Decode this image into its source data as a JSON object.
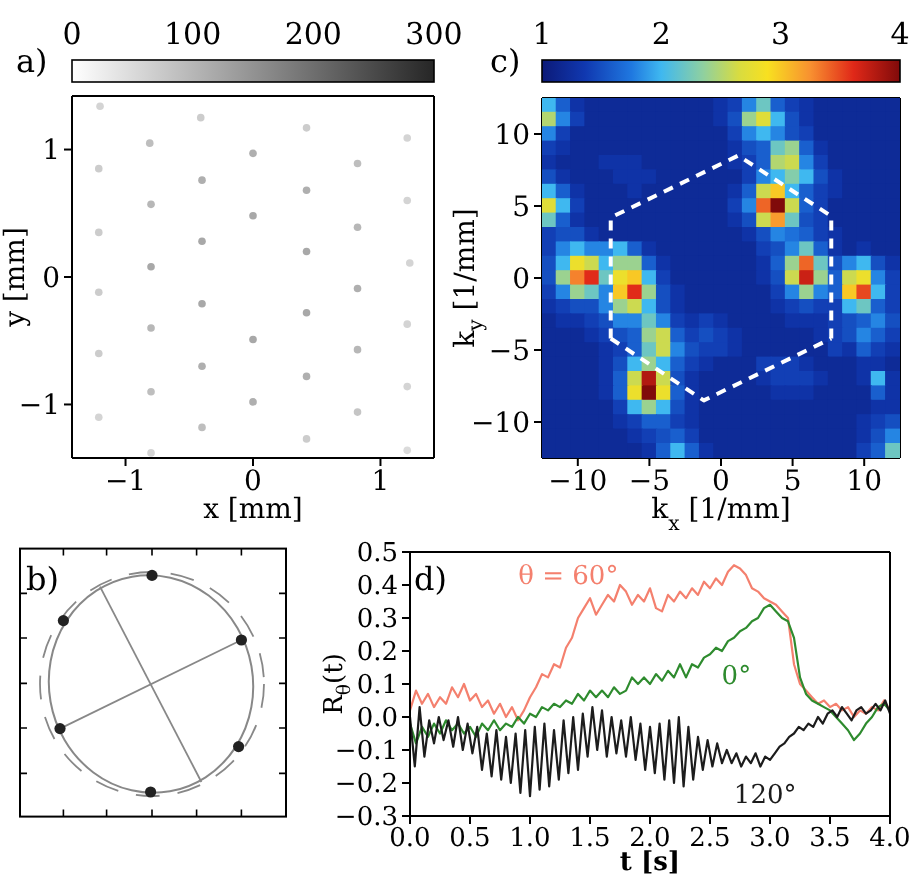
{
  "chart_data": [
    {
      "type": "scatter",
      "title": "a)",
      "xlabel": "x [mm]",
      "ylabel": "y [mm]",
      "xlim": [
        -1.42,
        1.42
      ],
      "ylim": [
        -1.42,
        1.42
      ],
      "xticks": [
        {
          "value": -1,
          "label": "−1"
        },
        0,
        1
      ],
      "yticks": [
        {
          "value": -1,
          "label": "−1"
        },
        0,
        1
      ],
      "clim": [
        0,
        300
      ],
      "cticks": [
        0,
        100,
        200,
        300
      ],
      "marker": "circle",
      "x": [
        -1.2,
        -0.41,
        0.42,
        1.21,
        -0.81,
        0,
        0.82,
        -1.21,
        -0.4,
        0.42,
        1.21,
        -0.8,
        0,
        0.82,
        -1.21,
        -0.4,
        0.42,
        1.23,
        -0.8,
        -1.21,
        -0.4,
        0.82,
        0.42,
        -0.8,
        0,
        1.21,
        -1.21,
        -0.4,
        0.82,
        0.42,
        -0.8,
        0,
        1.21,
        -1.21,
        -0.4,
        0.82,
        0.42,
        -0.8,
        1.21
      ],
      "values": [
        1.34,
        1.25,
        1.17,
        1.09,
        1.05,
        0.97,
        0.89,
        0.85,
        0.76,
        0.68,
        0.6,
        0.57,
        0.48,
        0.39,
        0.35,
        0.28,
        0.2,
        0.11,
        0.08,
        -0.12,
        -0.21,
        -0.09,
        -0.28,
        -0.4,
        -0.49,
        -0.37,
        -0.6,
        -0.7,
        -0.57,
        -0.78,
        -0.9,
        -0.98,
        -0.86,
        -1.1,
        -1.18,
        -1.06,
        -1.27,
        -1.38,
        -1.36
      ],
      "cvalues": [
        60,
        70,
        70,
        60,
        90,
        110,
        90,
        70,
        110,
        110,
        60,
        100,
        120,
        100,
        70,
        120,
        120,
        60,
        120,
        70,
        120,
        110,
        120,
        100,
        120,
        60,
        70,
        110,
        100,
        110,
        90,
        110,
        60,
        60,
        90,
        80,
        70,
        60,
        50
      ]
    },
    {
      "type": "heatmap",
      "title": "c)",
      "xlabel": "k$_{x}$ [1/mm]",
      "ylabel": "k$_{y}$ [1/mm]",
      "xlim": [
        -12.5,
        12.5
      ],
      "ylim": [
        -12.5,
        12.5
      ],
      "xticks": [
        {
          "value": -10,
          "label": "−10"
        },
        {
          "value": -5,
          "label": "−5"
        },
        0,
        5,
        10
      ],
      "yticks": [
        {
          "value": -10,
          "label": "−10"
        },
        {
          "value": -5,
          "label": "−5"
        },
        0,
        5,
        10
      ],
      "clim": [
        1,
        4
      ],
      "cticks": [
        1,
        2,
        3,
        4
      ],
      "x": [
        -12,
        -11,
        -10,
        -9,
        -8,
        -7,
        -6,
        -5,
        -4,
        -3,
        -2,
        -1,
        0,
        1,
        2,
        3,
        4,
        5,
        6,
        7,
        8,
        9,
        10,
        11,
        12
      ],
      "y": [
        12,
        11,
        10,
        9,
        8,
        7,
        6,
        5,
        4,
        3,
        2,
        1,
        0,
        -1,
        -2,
        -3,
        -4,
        -5,
        -6,
        -7,
        -8,
        -9,
        -10,
        -11,
        -12
      ],
      "cells": [
        [
          2.0,
          1.6,
          1.3,
          1.2,
          1.2,
          1.2,
          1.2,
          1.2,
          1.2,
          1.2,
          1.2,
          1.2,
          1.3,
          1.4,
          1.8,
          2.2,
          1.6,
          1.4,
          1.3,
          1.2,
          1.2,
          1.2,
          1.2,
          1.2,
          1.2
        ],
        [
          2.5,
          1.8,
          1.4,
          1.2,
          1.2,
          1.2,
          1.2,
          1.2,
          1.2,
          1.2,
          1.2,
          1.2,
          1.3,
          1.5,
          2.4,
          2.7,
          2.0,
          1.5,
          1.3,
          1.2,
          1.2,
          1.2,
          1.2,
          1.2,
          1.2
        ],
        [
          1.8,
          1.4,
          1.2,
          1.2,
          1.2,
          1.2,
          1.2,
          1.2,
          1.2,
          1.2,
          1.2,
          1.2,
          1.2,
          1.4,
          1.8,
          2.0,
          1.8,
          1.5,
          1.4,
          1.2,
          1.2,
          1.2,
          1.2,
          1.2,
          1.2
        ],
        [
          1.4,
          1.3,
          1.2,
          1.2,
          1.2,
          1.2,
          1.2,
          1.2,
          1.2,
          1.2,
          1.2,
          1.2,
          1.2,
          1.3,
          1.5,
          1.6,
          2.2,
          2.4,
          1.6,
          1.3,
          1.2,
          1.2,
          1.2,
          1.2,
          1.2
        ],
        [
          1.3,
          1.2,
          1.2,
          1.2,
          1.3,
          1.3,
          1.3,
          1.2,
          1.2,
          1.2,
          1.2,
          1.2,
          1.2,
          1.3,
          1.4,
          1.6,
          2.5,
          2.6,
          1.8,
          1.4,
          1.2,
          1.2,
          1.2,
          1.2,
          1.2
        ],
        [
          1.5,
          1.3,
          1.2,
          1.2,
          1.2,
          1.3,
          1.3,
          1.3,
          1.2,
          1.2,
          1.2,
          1.2,
          1.2,
          1.2,
          1.4,
          1.8,
          2.0,
          2.3,
          2.0,
          1.5,
          1.3,
          1.2,
          1.2,
          1.2,
          1.2
        ],
        [
          2.0,
          1.6,
          1.3,
          1.2,
          1.2,
          1.2,
          1.3,
          1.2,
          1.2,
          1.2,
          1.2,
          1.2,
          1.2,
          1.3,
          1.6,
          2.6,
          3.0,
          2.0,
          1.6,
          1.4,
          1.3,
          1.2,
          1.2,
          1.2,
          1.2
        ],
        [
          2.7,
          2.0,
          1.4,
          1.2,
          1.2,
          1.2,
          1.2,
          1.2,
          1.2,
          1.2,
          1.2,
          1.2,
          1.2,
          1.4,
          1.8,
          3.4,
          4.0,
          2.6,
          1.6,
          1.4,
          1.2,
          1.2,
          1.2,
          1.2,
          1.2
        ],
        [
          2.2,
          1.6,
          1.3,
          1.2,
          1.2,
          1.2,
          1.2,
          1.2,
          1.2,
          1.2,
          1.2,
          1.2,
          1.2,
          1.3,
          1.5,
          2.6,
          3.2,
          2.2,
          1.5,
          1.4,
          1.2,
          1.2,
          1.2,
          1.2,
          1.2
        ],
        [
          1.4,
          1.5,
          1.5,
          1.3,
          1.2,
          1.2,
          1.2,
          1.2,
          1.2,
          1.2,
          1.2,
          1.2,
          1.2,
          1.2,
          1.3,
          1.5,
          1.8,
          1.7,
          1.6,
          1.4,
          1.3,
          1.2,
          1.2,
          1.2,
          1.2
        ],
        [
          1.4,
          1.8,
          2.0,
          1.8,
          1.8,
          2.0,
          1.6,
          1.3,
          1.2,
          1.2,
          1.2,
          1.2,
          1.2,
          1.2,
          1.2,
          1.4,
          1.5,
          1.8,
          2.2,
          1.6,
          1.3,
          1.2,
          1.3,
          1.2,
          1.2
        ],
        [
          1.5,
          2.0,
          2.8,
          2.6,
          2.0,
          2.4,
          2.4,
          1.6,
          1.3,
          1.2,
          1.2,
          1.2,
          1.2,
          1.2,
          1.2,
          1.3,
          1.6,
          2.4,
          3.4,
          2.2,
          1.5,
          1.8,
          2.0,
          1.5,
          1.3
        ],
        [
          1.5,
          2.4,
          3.3,
          3.6,
          2.2,
          2.8,
          3.0,
          2.0,
          1.4,
          1.2,
          1.2,
          1.2,
          1.2,
          1.2,
          1.2,
          1.3,
          1.5,
          2.6,
          3.7,
          2.4,
          1.6,
          2.6,
          2.8,
          1.8,
          1.4
        ],
        [
          1.4,
          1.8,
          2.4,
          2.2,
          1.8,
          3.0,
          3.6,
          2.4,
          1.5,
          1.3,
          1.2,
          1.2,
          1.2,
          1.2,
          1.2,
          1.2,
          1.4,
          1.8,
          2.4,
          1.8,
          1.6,
          3.0,
          3.5,
          2.0,
          1.4
        ],
        [
          1.3,
          1.4,
          1.5,
          1.5,
          1.8,
          2.4,
          2.6,
          2.0,
          1.5,
          1.3,
          1.2,
          1.2,
          1.2,
          1.2,
          1.2,
          1.2,
          1.3,
          1.4,
          1.5,
          1.4,
          1.4,
          2.0,
          2.2,
          1.6,
          1.4
        ],
        [
          1.2,
          1.3,
          1.3,
          1.4,
          1.5,
          1.8,
          1.8,
          2.2,
          1.8,
          1.4,
          1.3,
          1.4,
          1.3,
          1.2,
          1.2,
          1.2,
          1.2,
          1.3,
          1.3,
          1.3,
          1.4,
          1.5,
          1.6,
          1.8,
          1.5
        ],
        [
          1.2,
          1.2,
          1.2,
          1.3,
          1.4,
          1.5,
          1.6,
          2.4,
          2.6,
          1.6,
          1.4,
          1.5,
          1.4,
          1.3,
          1.2,
          1.2,
          1.2,
          1.2,
          1.2,
          1.3,
          1.4,
          1.5,
          1.8,
          1.6,
          1.4
        ],
        [
          1.2,
          1.2,
          1.2,
          1.2,
          1.3,
          1.4,
          1.6,
          2.2,
          2.6,
          1.8,
          1.5,
          1.4,
          1.4,
          1.3,
          1.2,
          1.2,
          1.2,
          1.2,
          1.2,
          1.2,
          1.4,
          1.3,
          1.6,
          1.4,
          1.3
        ],
        [
          1.2,
          1.2,
          1.2,
          1.2,
          1.3,
          1.5,
          2.0,
          2.4,
          2.0,
          1.6,
          1.4,
          1.3,
          1.2,
          1.2,
          1.2,
          1.4,
          1.4,
          1.4,
          1.3,
          1.2,
          1.2,
          1.2,
          1.3,
          1.3,
          1.2
        ],
        [
          1.2,
          1.2,
          1.2,
          1.2,
          1.3,
          1.6,
          2.6,
          3.8,
          2.6,
          1.5,
          1.3,
          1.2,
          1.2,
          1.2,
          1.2,
          1.3,
          1.4,
          1.4,
          1.4,
          1.3,
          1.2,
          1.2,
          1.3,
          2.0,
          1.3
        ],
        [
          1.2,
          1.2,
          1.2,
          1.2,
          1.3,
          1.6,
          2.8,
          4.0,
          2.8,
          1.6,
          1.3,
          1.2,
          1.2,
          1.2,
          1.2,
          1.2,
          1.3,
          1.3,
          1.3,
          1.2,
          1.2,
          1.2,
          1.2,
          1.6,
          1.3
        ],
        [
          1.2,
          1.2,
          1.2,
          1.2,
          1.2,
          1.4,
          2.0,
          2.4,
          2.0,
          1.5,
          1.3,
          1.2,
          1.2,
          1.2,
          1.2,
          1.2,
          1.2,
          1.2,
          1.2,
          1.2,
          1.2,
          1.2,
          1.2,
          1.3,
          1.3
        ],
        [
          1.2,
          1.2,
          1.2,
          1.2,
          1.2,
          1.3,
          1.4,
          1.6,
          1.6,
          1.4,
          1.3,
          1.2,
          1.2,
          1.2,
          1.2,
          1.2,
          1.2,
          1.2,
          1.2,
          1.2,
          1.2,
          1.2,
          1.3,
          1.4,
          1.5
        ],
        [
          1.2,
          1.2,
          1.2,
          1.2,
          1.2,
          1.2,
          1.3,
          1.4,
          1.5,
          1.6,
          1.4,
          1.2,
          1.2,
          1.2,
          1.2,
          1.2,
          1.2,
          1.2,
          1.2,
          1.2,
          1.2,
          1.2,
          1.3,
          1.5,
          1.8
        ],
        [
          1.2,
          1.2,
          1.2,
          1.2,
          1.2,
          1.2,
          1.2,
          1.3,
          1.6,
          2.0,
          1.6,
          1.3,
          1.2,
          1.2,
          1.2,
          1.2,
          1.2,
          1.2,
          1.2,
          1.2,
          1.2,
          1.2,
          1.4,
          1.6,
          2.2
        ]
      ],
      "series": [
        {
          "type": "line",
          "color": "#ffffff",
          "line_style": "dashed",
          "x": [
            -7.7,
            -7.7,
            1.2,
            7.7,
            7.7
          ],
          "values": [
            -4.2,
            4.2,
            8.5,
            4.3,
            -4.2
          ]
        },
        {
          "type": "line",
          "color": "#ffffff",
          "line_style": "dashed",
          "x": [
            -7.7,
            -1.2,
            7.7
          ],
          "values": [
            -4.2,
            -8.5,
            -4.2
          ]
        }
      ]
    },
    {
      "type": "other",
      "title": "b)"
    },
    {
      "type": "line",
      "title": "d)",
      "xlabel": "t [s]",
      "ylabel": "R$_{θ}$(t)",
      "xlim": [
        0,
        4
      ],
      "ylim": [
        -0.3,
        0.5
      ],
      "xticks": [
        {
          "value": 0,
          "label": "0.0"
        },
        0.5,
        {
          "value": 1,
          "label": "1.0"
        },
        1.5,
        {
          "value": 2,
          "label": "2.0"
        },
        2.5,
        {
          "value": 3,
          "label": "3.0"
        },
        3.5,
        {
          "value": 4,
          "label": "4.0"
        }
      ],
      "yticks": [
        {
          "value": -0.3,
          "label": "−0.3"
        },
        {
          "value": -0.2,
          "label": "−0.2"
        },
        {
          "value": -0.1,
          "label": "−0.1"
        },
        {
          "value": 0,
          "label": "0.0"
        },
        0.1,
        0.2,
        0.3,
        0.4,
        0.5
      ],
      "series": [
        {
          "name": "θ = 60°",
          "color": "#f4806e",
          "x": [
            0,
            0.05,
            0.1,
            0.15,
            0.2,
            0.25,
            0.3,
            0.35,
            0.4,
            0.45,
            0.5,
            0.55,
            0.6,
            0.65,
            0.7,
            0.75,
            0.8,
            0.85,
            0.9,
            0.95,
            1,
            1.05,
            1.1,
            1.15,
            1.2,
            1.25,
            1.3,
            1.35,
            1.4,
            1.45,
            1.5,
            1.55,
            1.6,
            1.65,
            1.7,
            1.75,
            1.8,
            1.85,
            1.9,
            1.95,
            2,
            2.05,
            2.1,
            2.15,
            2.2,
            2.25,
            2.3,
            2.35,
            2.4,
            2.45,
            2.5,
            2.55,
            2.6,
            2.65,
            2.7,
            2.75,
            2.8,
            2.85,
            2.9,
            2.95,
            3,
            3.05,
            3.1,
            3.15,
            3.2,
            3.25,
            3.3,
            3.35,
            3.4,
            3.45,
            3.5,
            3.55,
            3.6,
            3.65,
            3.7,
            3.75,
            3.8,
            3.85,
            3.9,
            3.95,
            4
          ],
          "values": [
            0.02,
            0.08,
            0.04,
            0.07,
            0.03,
            0.06,
            0.04,
            0.09,
            0.06,
            0.1,
            0.05,
            0.07,
            0.03,
            0.05,
            0.01,
            0.04,
            0,
            0.03,
            -0.01,
            0.02,
            0.06,
            0.09,
            0.13,
            0.12,
            0.16,
            0.15,
            0.21,
            0.24,
            0.3,
            0.33,
            0.36,
            0.31,
            0.34,
            0.37,
            0.35,
            0.4,
            0.38,
            0.34,
            0.37,
            0.35,
            0.39,
            0.33,
            0.32,
            0.37,
            0.35,
            0.38,
            0.36,
            0.39,
            0.37,
            0.41,
            0.39,
            0.42,
            0.4,
            0.44,
            0.46,
            0.45,
            0.43,
            0.39,
            0.38,
            0.36,
            0.35,
            0.34,
            0.32,
            0.3,
            0.16,
            0.1,
            0.08,
            0.06,
            0.04,
            0.05,
            0.03,
            0.04,
            0.02,
            0.03,
            0,
            0.02,
            0.01,
            0.03,
            0.02,
            0.05,
            0.02
          ]
        },
        {
          "name": "0°",
          "color": "#2e8b2e",
          "x": [
            0,
            0.05,
            0.1,
            0.15,
            0.2,
            0.25,
            0.3,
            0.35,
            0.4,
            0.45,
            0.5,
            0.55,
            0.6,
            0.65,
            0.7,
            0.75,
            0.8,
            0.85,
            0.9,
            0.95,
            1,
            1.05,
            1.1,
            1.15,
            1.2,
            1.25,
            1.3,
            1.35,
            1.4,
            1.45,
            1.5,
            1.55,
            1.6,
            1.65,
            1.7,
            1.75,
            1.8,
            1.85,
            1.9,
            1.95,
            2,
            2.05,
            2.1,
            2.15,
            2.2,
            2.25,
            2.3,
            2.35,
            2.4,
            2.45,
            2.5,
            2.55,
            2.6,
            2.65,
            2.7,
            2.75,
            2.8,
            2.85,
            2.9,
            2.95,
            3,
            3.05,
            3.1,
            3.15,
            3.2,
            3.25,
            3.3,
            3.35,
            3.4,
            3.45,
            3.5,
            3.55,
            3.6,
            3.65,
            3.7,
            3.75,
            3.8,
            3.85,
            3.9,
            3.95,
            4
          ],
          "values": [
            -0.02,
            -0.08,
            -0.03,
            -0.06,
            -0.02,
            -0.05,
            -0.01,
            -0.04,
            -0.02,
            -0.05,
            -0.03,
            -0.06,
            -0.02,
            -0.04,
            -0.01,
            -0.04,
            -0.02,
            -0.03,
            0,
            -0.02,
            0.01,
            0,
            0.03,
            0.02,
            0.04,
            0.03,
            0.05,
            0.04,
            0.07,
            0.05,
            0.08,
            0.06,
            0.08,
            0.06,
            0.09,
            0.07,
            0.08,
            0.12,
            0.1,
            0.12,
            0.1,
            0.13,
            0.11,
            0.14,
            0.12,
            0.16,
            0.12,
            0.16,
            0.15,
            0.18,
            0.19,
            0.21,
            0.2,
            0.23,
            0.24,
            0.26,
            0.27,
            0.29,
            0.3,
            0.33,
            0.34,
            0.32,
            0.3,
            0.29,
            0.24,
            0.12,
            0.07,
            0.05,
            0.04,
            0.03,
            0.02,
            0,
            -0.02,
            -0.04,
            -0.07,
            -0.05,
            -0.02,
            0,
            0.03,
            0.04,
            0.02
          ]
        },
        {
          "name": "120°",
          "color": "#1c1c1c",
          "x": [
            0,
            0.04,
            0.08,
            0.12,
            0.16,
            0.2,
            0.24,
            0.28,
            0.32,
            0.36,
            0.4,
            0.44,
            0.48,
            0.52,
            0.56,
            0.6,
            0.64,
            0.68,
            0.72,
            0.76,
            0.8,
            0.84,
            0.88,
            0.92,
            0.96,
            1,
            1.04,
            1.08,
            1.12,
            1.16,
            1.2,
            1.24,
            1.28,
            1.32,
            1.36,
            1.4,
            1.44,
            1.48,
            1.52,
            1.56,
            1.6,
            1.64,
            1.68,
            1.72,
            1.76,
            1.8,
            1.84,
            1.88,
            1.92,
            1.96,
            2,
            2.04,
            2.08,
            2.12,
            2.16,
            2.2,
            2.24,
            2.28,
            2.32,
            2.36,
            2.4,
            2.44,
            2.48,
            2.52,
            2.56,
            2.6,
            2.64,
            2.68,
            2.72,
            2.76,
            2.8,
            2.84,
            2.88,
            2.92,
            2.96,
            3,
            3.04,
            3.08,
            3.12,
            3.16,
            3.2,
            3.24,
            3.28,
            3.32,
            3.36,
            3.4,
            3.44,
            3.48,
            3.52,
            3.56,
            3.6,
            3.64,
            3.68,
            3.72,
            3.76,
            3.8,
            3.84,
            3.88,
            3.92,
            3.96,
            4
          ],
          "values": [
            0,
            -0.15,
            0.03,
            -0.12,
            -0.01,
            -0.08,
            0,
            -0.07,
            -0.01,
            -0.09,
            0,
            -0.1,
            -0.02,
            -0.11,
            -0.03,
            -0.16,
            -0.05,
            -0.18,
            -0.04,
            -0.19,
            -0.06,
            -0.2,
            -0.05,
            -0.23,
            -0.04,
            -0.24,
            -0.03,
            -0.22,
            -0.02,
            -0.21,
            -0.04,
            -0.19,
            -0.01,
            -0.17,
            0,
            -0.16,
            0.01,
            -0.12,
            0.03,
            -0.1,
            0.02,
            -0.12,
            0,
            -0.11,
            -0.01,
            -0.12,
            0,
            -0.13,
            -0.02,
            -0.16,
            -0.03,
            -0.17,
            -0.02,
            -0.19,
            -0.01,
            -0.2,
            0,
            -0.21,
            -0.03,
            -0.19,
            -0.06,
            -0.16,
            -0.07,
            -0.15,
            -0.08,
            -0.14,
            -0.1,
            -0.14,
            -0.11,
            -0.15,
            -0.12,
            -0.14,
            -0.11,
            -0.15,
            -0.12,
            -0.13,
            -0.11,
            -0.09,
            -0.08,
            -0.06,
            -0.05,
            -0.03,
            -0.04,
            -0.02,
            -0.03,
            0,
            -0.02,
            0.01,
            0.02,
            0,
            0.03,
            0.01,
            -0.01,
            0.02,
            0.03,
            0.01,
            0.02,
            0.04,
            0.02,
            0.05,
            0.01
          ]
        }
      ]
    }
  ]
}
